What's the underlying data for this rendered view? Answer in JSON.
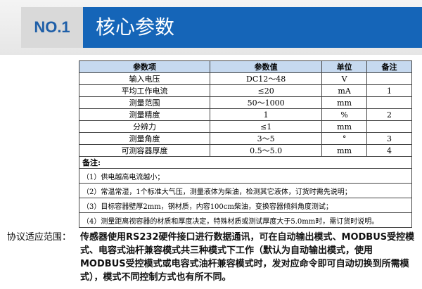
{
  "header": {
    "badge": "NO.1",
    "title": "核心参数"
  },
  "table": {
    "columns": [
      "参数项",
      "参数值",
      "单位",
      "备注"
    ],
    "rows": [
      [
        "输入电压",
        "DC12～48",
        "V",
        null
      ],
      [
        "平均工作电流",
        "≤20",
        "mA",
        "1"
      ],
      [
        "测量范围",
        "50～1000",
        "mm",
        null
      ],
      [
        "测量精度",
        "1",
        "%",
        "2"
      ],
      [
        "分辨力",
        "≤1",
        "mm",
        null
      ],
      [
        "测量角度",
        "3～5",
        "°",
        "3"
      ],
      [
        "可测容器厚度",
        "0.5～5.0",
        "mm",
        "4"
      ]
    ],
    "notes_title": "备注:",
    "notes": [
      "（1）供电越高电流越小；",
      "（2）常温常湿，1个标准大气压，测量液体为柴油，检测其它液体，订货时需先说明；",
      "（3）目标容器壁厚2mm，钢材质，内容100cm柴油，变换容器倾斜角度测试；",
      "（4）测量距离视容器的材质和厚度决定，特殊材质或测试厚度大于5.0mm时，需订货时说明。"
    ]
  },
  "protocol": {
    "label": "协议适应范围：",
    "text": "传感器使用RS232硬件接口进行数据通讯，可在自动输出模式、MODBUS受控模式、电容式油杆兼容模式共三种模式下工作（默认为自动输出模式，使用MODBUS受控模式或电容式油杆兼容模式时，发对应命令即可自动切换到所需模式），模式不同控制方式也有所不同。"
  }
}
